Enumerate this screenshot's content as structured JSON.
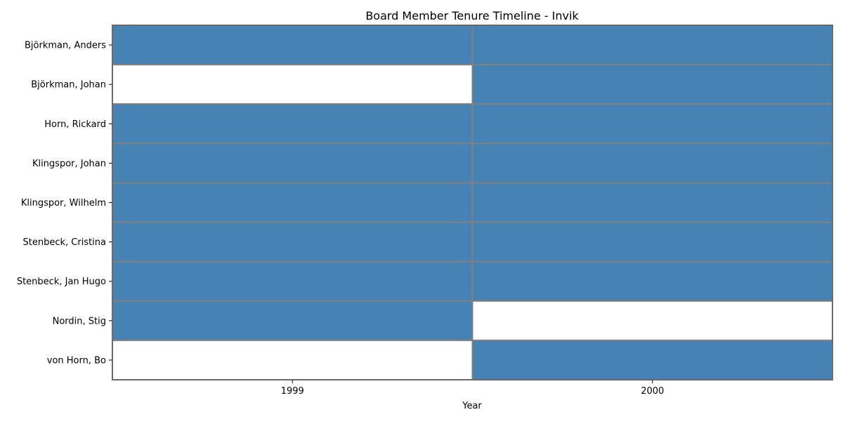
{
  "chart_data": {
    "type": "heatmap",
    "title": "Board Member Tenure Timeline - Invik",
    "xlabel": "Year",
    "ylabel": "",
    "x": [
      "1999",
      "2000"
    ],
    "y": [
      "Björkman, Anders",
      "Björkman, Johan",
      "Horn, Rickard",
      "Klingspor, Johan",
      "Klingspor, Wilhelm",
      "Stenbeck, Cristina",
      "Stenbeck, Jan Hugo",
      "Nordin, Stig",
      "von Horn, Bo"
    ],
    "values": [
      [
        1,
        1
      ],
      [
        0,
        1
      ],
      [
        1,
        1
      ],
      [
        1,
        1
      ],
      [
        1,
        1
      ],
      [
        1,
        1
      ],
      [
        1,
        1
      ],
      [
        1,
        0
      ],
      [
        0,
        1
      ]
    ],
    "colors": {
      "active": "#4682b4",
      "inactive": "#ffffff",
      "cell_border": "#808080",
      "axis": "#555555",
      "text": "#000000"
    },
    "grid": false,
    "legend": "none"
  }
}
